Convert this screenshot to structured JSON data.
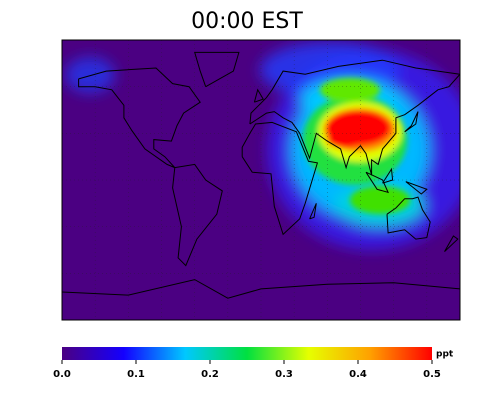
{
  "title": "00:00 EST",
  "colorbar": {
    "range": [
      0,
      0.5
    ],
    "ticks": [
      {
        "value": 0,
        "label": "0.0"
      },
      0.1,
      0.2,
      0.3,
      0.4,
      0.5
    ],
    "unit": "ppt",
    "colors": [
      "#4b0082",
      "#1400ff",
      "#00c8ff",
      "#00e040",
      "#e6ff00",
      "#ffa000",
      "#ff0000"
    ]
  }
}
